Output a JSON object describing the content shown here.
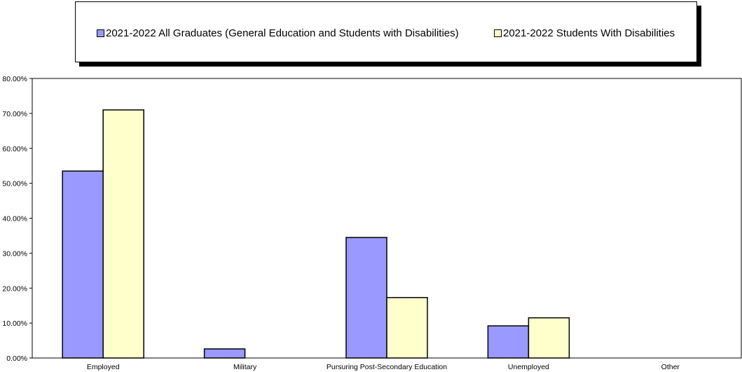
{
  "chart_data": {
    "type": "bar",
    "categories": [
      "Employed",
      "Military",
      "Pursuring Post-Secondary Education",
      "Unemployed",
      "Other"
    ],
    "series": [
      {
        "name": "2021-2022 All Graduates (General Education and Students with Disabilities)",
        "values": [
          53.5,
          2.6,
          34.5,
          9.2,
          0
        ],
        "color": "#9999ff"
      },
      {
        "name": "2021-2022 Students With Disabilities",
        "values": [
          71.0,
          0,
          17.3,
          11.5,
          0
        ],
        "color": "#ffffcc"
      }
    ],
    "yticks": [
      "0.00%",
      "10.00%",
      "20.00%",
      "30.00%",
      "40.00%",
      "50.00%",
      "60.00%",
      "70.00%",
      "80.00%"
    ],
    "ylim": [
      0,
      80
    ],
    "legend_position": "top",
    "grid": false
  }
}
